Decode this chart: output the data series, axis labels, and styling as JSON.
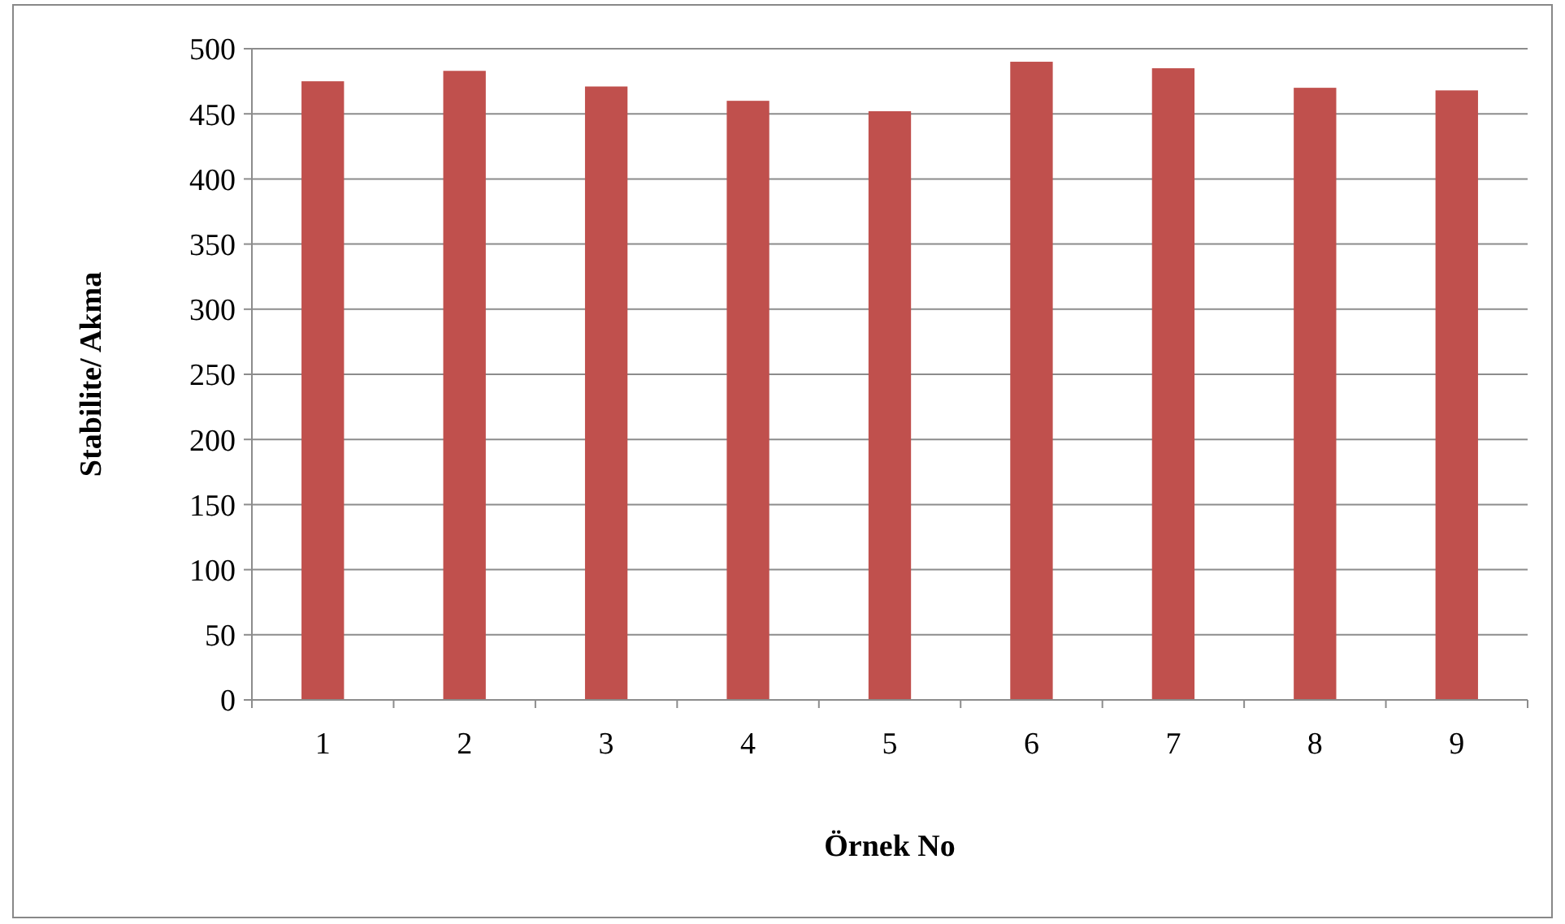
{
  "chart_data": {
    "type": "bar",
    "xlabel": "Örnek No",
    "ylabel": "Stabilite/ Akma",
    "categories": [
      "1",
      "2",
      "3",
      "4",
      "5",
      "6",
      "7",
      "8",
      "9"
    ],
    "values": [
      475,
      483,
      471,
      460,
      452,
      490,
      485,
      470,
      468
    ],
    "color": "#c0504d",
    "ylim": [
      0,
      500
    ],
    "yticks": [
      0,
      50,
      100,
      150,
      200,
      250,
      300,
      350,
      400,
      450,
      500
    ],
    "grid": "y"
  }
}
